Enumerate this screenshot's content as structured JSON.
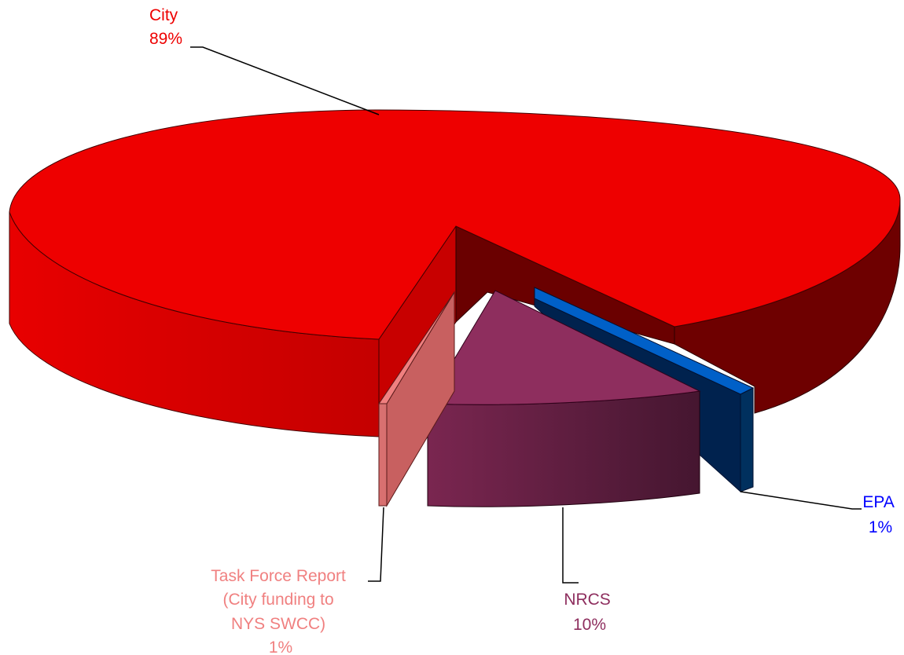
{
  "chart_data": {
    "type": "pie",
    "style": "3d-exploded",
    "title": "",
    "slices": [
      {
        "name": "City",
        "value": 89,
        "label": "89%",
        "color": "#ee0000",
        "label_color": "#ee0000"
      },
      {
        "name": "EPA",
        "value": 1,
        "label": "1%",
        "color": "#0060c8",
        "label_color": "#0000ff"
      },
      {
        "name": "NRCS",
        "value": 10,
        "label": "10%",
        "color": "#8e2e5e",
        "label_color": "#8e2e5e"
      },
      {
        "name": "Task Force Report (City funding to NYS SWCC)",
        "value": 1,
        "label": "1%",
        "color": "#e07070",
        "label_color": "#f08080"
      }
    ],
    "labels": {
      "city": [
        "City",
        "89%"
      ],
      "epa": [
        "EPA",
        "1%"
      ],
      "nrcs": [
        "NRCS",
        "10%"
      ],
      "tfr": [
        "Task Force Report",
        "(City funding to",
        "NYS SWCC)",
        "1%"
      ]
    }
  }
}
